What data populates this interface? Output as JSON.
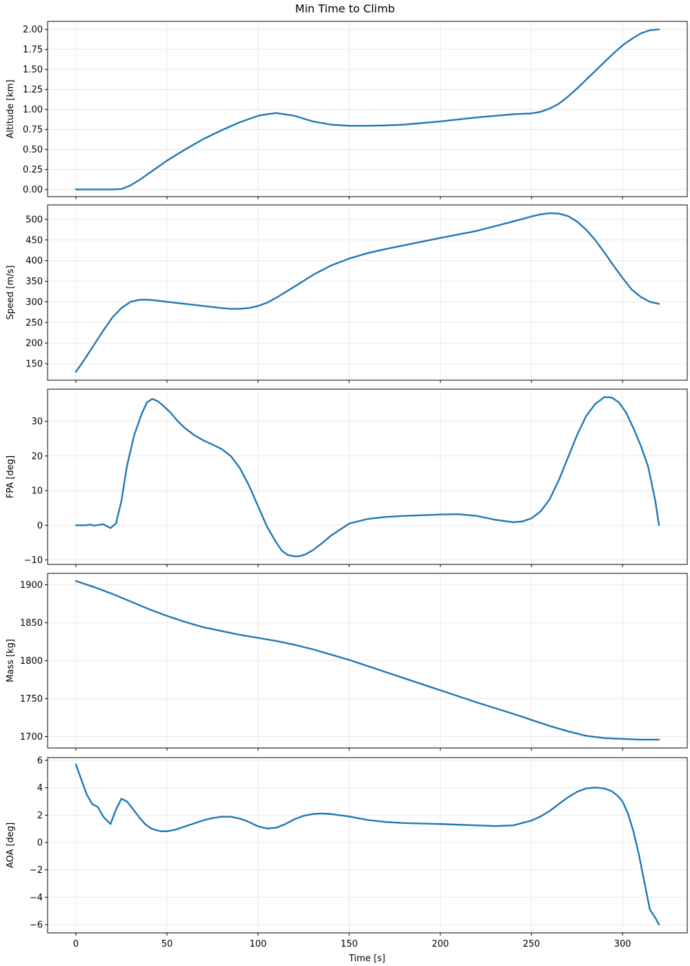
{
  "title": "Min Time to Climb",
  "x_axis": {
    "label": "Time [s]",
    "lim": [
      -15.5,
      335.5
    ],
    "ticks": [
      0,
      50,
      100,
      150,
      200,
      250,
      300
    ]
  },
  "colors": {
    "line": "#1f77b4",
    "grid": "#b0b0b0"
  },
  "chart_data": [
    {
      "type": "line",
      "ylabel": "Altitude [km]",
      "ylim": [
        -0.09,
        2.1
      ],
      "yticks": [
        0.0,
        0.25,
        0.5,
        0.75,
        1.0,
        1.25,
        1.5,
        1.75,
        2.0
      ],
      "ytick_decimals": 2,
      "x": [
        0,
        5,
        10,
        15,
        20,
        25,
        30,
        35,
        40,
        45,
        50,
        60,
        70,
        80,
        90,
        100,
        105,
        110,
        120,
        130,
        140,
        150,
        160,
        170,
        180,
        200,
        220,
        240,
        250,
        255,
        260,
        265,
        270,
        275,
        280,
        285,
        290,
        295,
        300,
        305,
        310,
        315,
        320
      ],
      "y": [
        0.0,
        0.0,
        0.0,
        0.0,
        0.0,
        0.005,
        0.05,
        0.12,
        0.2,
        0.28,
        0.36,
        0.5,
        0.63,
        0.74,
        0.84,
        0.92,
        0.94,
        0.955,
        0.92,
        0.85,
        0.81,
        0.795,
        0.795,
        0.8,
        0.81,
        0.85,
        0.9,
        0.94,
        0.95,
        0.97,
        1.01,
        1.07,
        1.16,
        1.26,
        1.37,
        1.48,
        1.59,
        1.7,
        1.8,
        1.88,
        1.95,
        1.99,
        2.0
      ]
    },
    {
      "type": "line",
      "ylabel": "Speed [m/s]",
      "ylim": [
        110,
        535
      ],
      "yticks": [
        150,
        200,
        250,
        300,
        350,
        400,
        450,
        500
      ],
      "ytick_decimals": 0,
      "x": [
        0,
        5,
        10,
        15,
        20,
        25,
        30,
        35,
        40,
        45,
        50,
        60,
        70,
        80,
        85,
        90,
        95,
        100,
        105,
        110,
        120,
        130,
        140,
        150,
        160,
        170,
        180,
        200,
        220,
        240,
        250,
        255,
        260,
        265,
        270,
        275,
        280,
        285,
        290,
        295,
        300,
        305,
        310,
        315,
        320
      ],
      "y": [
        130,
        162,
        196,
        230,
        262,
        285,
        300,
        305,
        305,
        303,
        300,
        295,
        290,
        285,
        283,
        283,
        285,
        290,
        298,
        310,
        337,
        365,
        388,
        405,
        418,
        428,
        437,
        455,
        472,
        495,
        507,
        512,
        515,
        514,
        508,
        495,
        475,
        450,
        420,
        388,
        358,
        330,
        312,
        300,
        295
      ]
    },
    {
      "type": "line",
      "ylabel": "FPA [deg]",
      "ylim": [
        -11.3,
        39.3
      ],
      "yticks": [
        -10,
        0,
        10,
        20,
        30
      ],
      "ytick_decimals": 0,
      "x": [
        0,
        5,
        8,
        10,
        15,
        19,
        22,
        25,
        28,
        32,
        36,
        39,
        42,
        45,
        48,
        52,
        56,
        60,
        65,
        70,
        75,
        80,
        85,
        90,
        95,
        100,
        105,
        110,
        113,
        116,
        120,
        123,
        126,
        130,
        135,
        140,
        150,
        160,
        170,
        180,
        200,
        210,
        220,
        230,
        240,
        245,
        250,
        255,
        260,
        265,
        270,
        275,
        280,
        285,
        290,
        294,
        298,
        302,
        306,
        310,
        314,
        318,
        320
      ],
      "y": [
        0.0,
        0.0,
        0.2,
        -0.1,
        0.3,
        -0.8,
        0.5,
        7.0,
        17.0,
        26.0,
        32.0,
        35.5,
        36.5,
        35.8,
        34.5,
        32.5,
        30.0,
        28.0,
        26.0,
        24.5,
        23.3,
        22.0,
        20.0,
        16.5,
        11.5,
        5.5,
        -0.5,
        -5.0,
        -7.3,
        -8.5,
        -9.0,
        -8.9,
        -8.4,
        -7.2,
        -5.2,
        -3.0,
        0.5,
        1.8,
        2.4,
        2.7,
        3.1,
        3.2,
        2.7,
        1.6,
        0.9,
        1.1,
        2.0,
        4.0,
        7.5,
        13.0,
        19.5,
        26.0,
        31.5,
        35.0,
        37.0,
        36.9,
        35.5,
        32.5,
        28.0,
        23.0,
        17.0,
        7.0,
        0.0
      ]
    },
    {
      "type": "line",
      "ylabel": "Mass [kg]",
      "ylim": [
        1685,
        1915
      ],
      "yticks": [
        1700,
        1750,
        1800,
        1850,
        1900
      ],
      "ytick_decimals": 0,
      "x": [
        0,
        10,
        20,
        30,
        40,
        50,
        60,
        70,
        80,
        90,
        100,
        110,
        120,
        130,
        140,
        150,
        160,
        170,
        180,
        200,
        220,
        240,
        250,
        260,
        270,
        280,
        290,
        300,
        310,
        320
      ],
      "y": [
        1905,
        1897,
        1888,
        1878,
        1868,
        1859,
        1851,
        1844,
        1839,
        1834,
        1830,
        1826,
        1821,
        1815,
        1808,
        1801,
        1793,
        1785,
        1777,
        1761,
        1745,
        1730,
        1722,
        1714,
        1707,
        1701,
        1698,
        1697,
        1696,
        1696
      ]
    },
    {
      "type": "line",
      "ylabel": "AOA [deg]",
      "ylim": [
        -6.6,
        6.2
      ],
      "yticks": [
        -6,
        -4,
        -2,
        0,
        2,
        4,
        6
      ],
      "ytick_decimals": 0,
      "x": [
        0,
        3,
        6,
        9,
        12,
        15,
        19,
        22,
        25,
        28,
        31,
        35,
        38,
        41,
        44,
        47,
        50,
        55,
        60,
        65,
        70,
        75,
        80,
        85,
        90,
        95,
        100,
        105,
        110,
        115,
        120,
        125,
        130,
        135,
        140,
        150,
        160,
        170,
        180,
        200,
        220,
        230,
        240,
        250,
        255,
        260,
        265,
        270,
        275,
        280,
        285,
        290,
        294,
        297,
        300,
        303,
        306,
        309,
        312,
        315,
        318,
        320
      ],
      "y": [
        5.7,
        4.6,
        3.5,
        2.8,
        2.6,
        1.9,
        1.35,
        2.4,
        3.2,
        3.0,
        2.5,
        1.8,
        1.35,
        1.05,
        0.9,
        0.82,
        0.82,
        0.95,
        1.18,
        1.4,
        1.62,
        1.78,
        1.88,
        1.88,
        1.75,
        1.5,
        1.18,
        1.02,
        1.08,
        1.35,
        1.7,
        1.95,
        2.08,
        2.12,
        2.08,
        1.9,
        1.65,
        1.5,
        1.42,
        1.35,
        1.25,
        1.2,
        1.25,
        1.6,
        1.9,
        2.3,
        2.8,
        3.3,
        3.7,
        3.95,
        4.02,
        3.95,
        3.75,
        3.45,
        3.0,
        2.1,
        0.8,
        -0.9,
        -2.9,
        -4.9,
        -5.5,
        -6.0
      ]
    }
  ]
}
